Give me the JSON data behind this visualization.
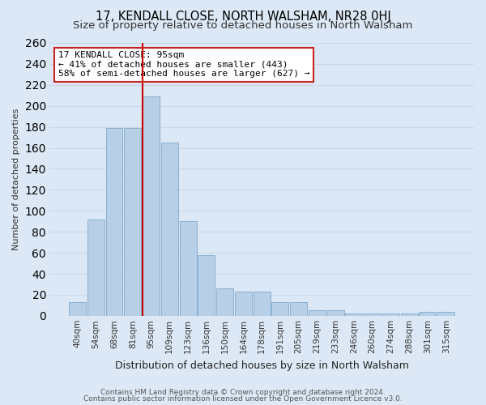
{
  "title": "17, KENDALL CLOSE, NORTH WALSHAM, NR28 0HJ",
  "subtitle": "Size of property relative to detached houses in North Walsham",
  "xlabel": "Distribution of detached houses by size in North Walsham",
  "ylabel": "Number of detached properties",
  "footer_line1": "Contains HM Land Registry data © Crown copyright and database right 2024.",
  "footer_line2": "Contains public sector information licensed under the Open Government Licence v3.0.",
  "annotation_title": "17 KENDALL CLOSE: 95sqm",
  "annotation_line1": "← 41% of detached houses are smaller (443)",
  "annotation_line2": "58% of semi-detached houses are larger (627) →",
  "bar_labels": [
    "40sqm",
    "54sqm",
    "68sqm",
    "81sqm",
    "95sqm",
    "109sqm",
    "123sqm",
    "136sqm",
    "150sqm",
    "164sqm",
    "178sqm",
    "191sqm",
    "205sqm",
    "219sqm",
    "233sqm",
    "246sqm",
    "260sqm",
    "274sqm",
    "288sqm",
    "301sqm",
    "315sqm"
  ],
  "bar_values": [
    13,
    92,
    179,
    179,
    209,
    165,
    90,
    58,
    26,
    23,
    23,
    13,
    13,
    5,
    5,
    2,
    2,
    2,
    2,
    4,
    4
  ],
  "bar_color": "#b8cfe8",
  "bar_edge_color": "#8ab0d0",
  "vline_color": "#cc0000",
  "grid_color": "#c8d8ec",
  "background_color": "#dce8f5",
  "ylim": [
    0,
    260
  ],
  "yticks": [
    0,
    20,
    40,
    60,
    80,
    100,
    120,
    140,
    160,
    180,
    200,
    220,
    240,
    260
  ],
  "title_fontsize": 10.5,
  "subtitle_fontsize": 9.5,
  "xlabel_fontsize": 9,
  "ylabel_fontsize": 8,
  "tick_fontsize": 7.5,
  "annotation_fontsize": 8,
  "footer_fontsize": 6.5
}
